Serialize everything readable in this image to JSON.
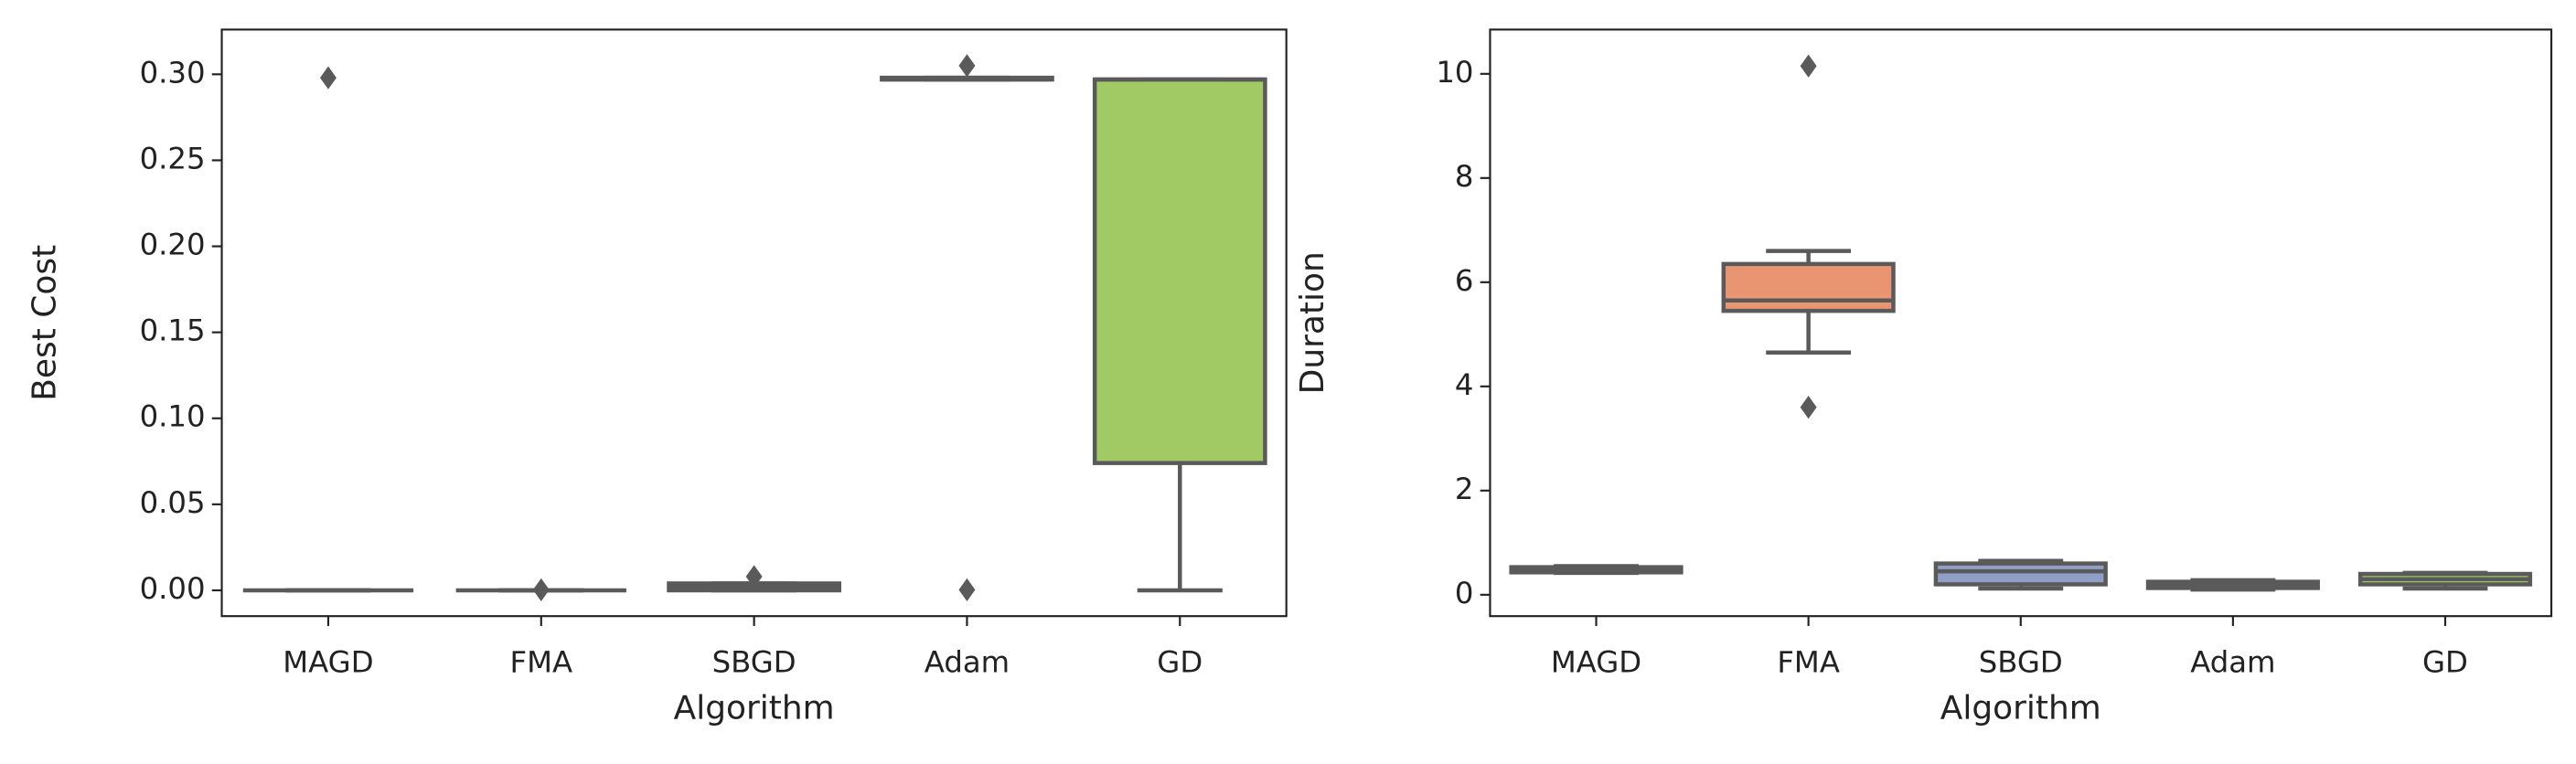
{
  "chart_data": [
    {
      "type": "box",
      "xlabel": "Algorithm",
      "ylabel": "Best Cost",
      "categories": [
        "MAGD",
        "FMA",
        "SBGD",
        "Adam",
        "GD"
      ],
      "ylim": [
        -0.015,
        0.326
      ],
      "yticks": [
        {
          "value": 0,
          "label": "0.00"
        },
        {
          "value": 0.05,
          "label": "0.05"
        },
        {
          "value": 0.1,
          "label": "0.10"
        },
        {
          "value": 0.15,
          "label": "0.15"
        },
        {
          "value": 0.2,
          "label": "0.20"
        },
        {
          "value": 0.25,
          "label": "0.25"
        },
        {
          "value": 0.3,
          "label": "0.30"
        }
      ],
      "boxes": [
        {
          "color": "#72b9a1",
          "whislo": 0,
          "q1": 0,
          "med": 0,
          "q3": 0,
          "whishi": 0,
          "fliers": [
            0.298
          ]
        },
        {
          "color": "#e99572",
          "whislo": 0,
          "q1": 0,
          "med": 0,
          "q3": 0,
          "whishi": 0,
          "fliers": [
            0.0003
          ]
        },
        {
          "color": "#909fc6",
          "whislo": 0,
          "q1": 0,
          "med": 0.002,
          "q3": 0.004,
          "whishi": 0.004,
          "fliers": [
            0.008
          ]
        },
        {
          "color": "#d88fbf",
          "whislo": 0.297,
          "q1": 0.297,
          "med": 0.297,
          "q3": 0.298,
          "whishi": 0.298,
          "fliers": [
            0.305,
            0.0003
          ]
        },
        {
          "color": "#a1c964",
          "whislo": 0,
          "q1": 0.074,
          "med": 0.297,
          "q3": 0.297,
          "whishi": 0.297,
          "fliers": []
        }
      ]
    },
    {
      "type": "box",
      "xlabel": "Algorithm",
      "ylabel": "Duration",
      "categories": [
        "MAGD",
        "FMA",
        "SBGD",
        "Adam",
        "GD"
      ],
      "ylim": [
        -0.41,
        10.85
      ],
      "yticks": [
        0,
        2,
        4,
        6,
        8,
        10
      ],
      "boxes": [
        {
          "color": "#72b9a1",
          "whislo": 0.42,
          "q1": 0.43,
          "med": 0.48,
          "q3": 0.53,
          "whishi": 0.55,
          "fliers": []
        },
        {
          "color": "#e99572",
          "whislo": 4.65,
          "q1": 5.45,
          "med": 5.65,
          "q3": 6.35,
          "whishi": 6.6,
          "fliers": [
            3.6,
            10.15
          ]
        },
        {
          "color": "#909fc6",
          "whislo": 0.12,
          "q1": 0.2,
          "med": 0.45,
          "q3": 0.6,
          "whishi": 0.65,
          "fliers": []
        },
        {
          "color": "#d88fbf",
          "whislo": 0.1,
          "q1": 0.13,
          "med": 0.2,
          "q3": 0.25,
          "whishi": 0.28,
          "fliers": []
        },
        {
          "color": "#a1c964",
          "whislo": 0.12,
          "q1": 0.2,
          "med": 0.3,
          "q3": 0.4,
          "whishi": 0.42,
          "fliers": []
        }
      ]
    }
  ]
}
